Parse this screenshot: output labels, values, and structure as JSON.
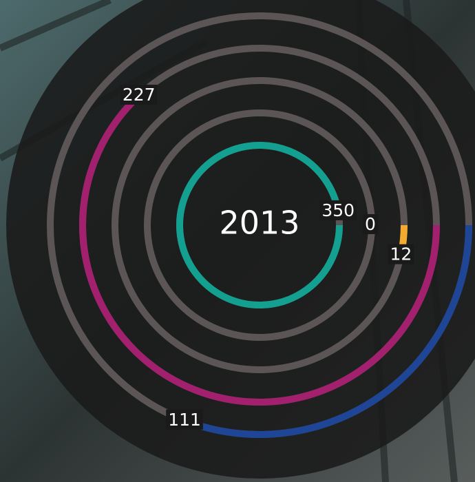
{
  "chart_data": {
    "type": "radial_bar",
    "title": "2013",
    "values": [
      350,
      0,
      12,
      227,
      111
    ],
    "colors": [
      "#14a090",
      "#5b5655",
      "#f5ab2e",
      "#a3206f",
      "#1f4596"
    ],
    "track_color": "#5b5655"
  }
}
